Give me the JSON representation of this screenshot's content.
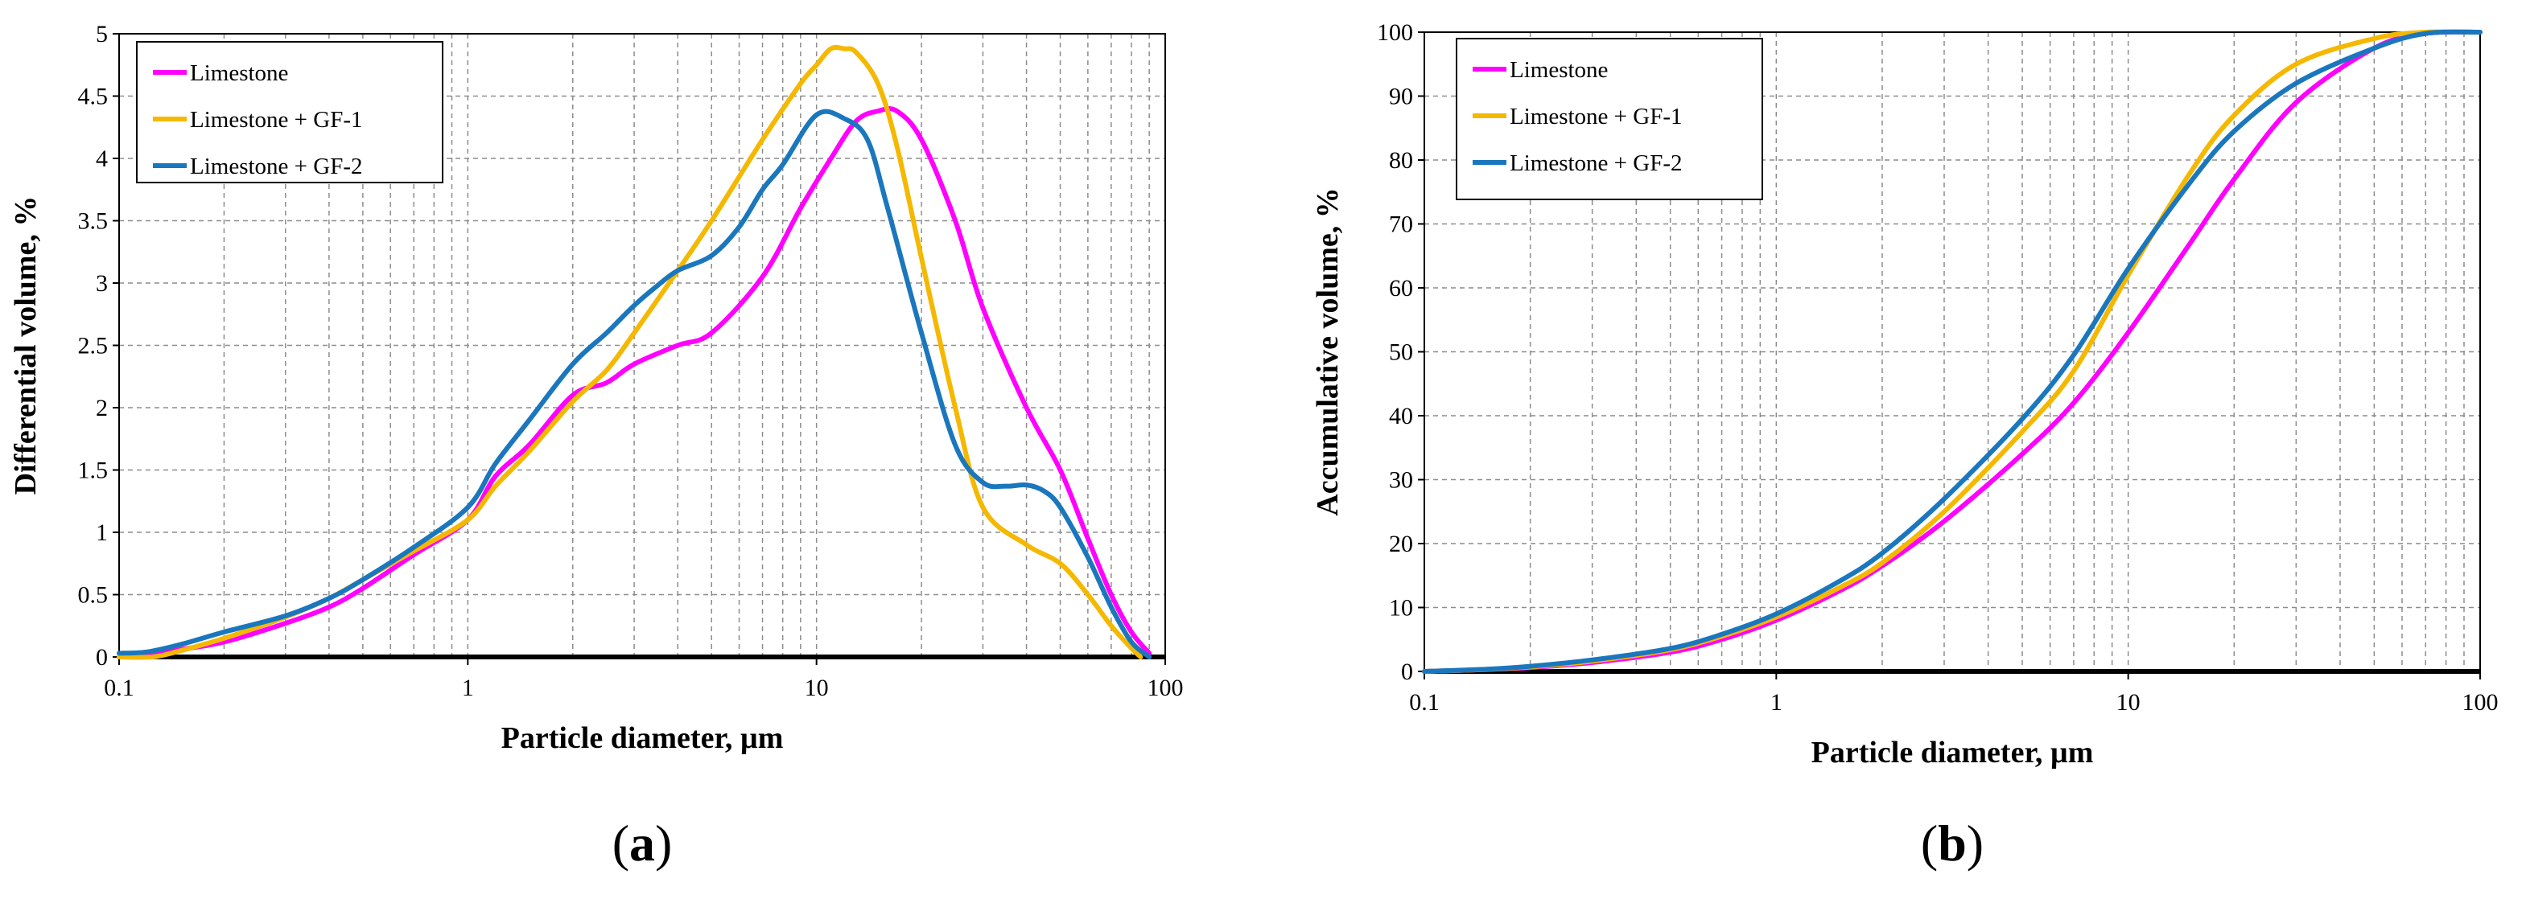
{
  "colors": {
    "limestone": "#ff00ff",
    "gf1": "#f5b800",
    "gf2": "#1a77bd",
    "grid": "#8c8c8c",
    "axis": "#000000"
  },
  "chart_data": [
    {
      "id": "a",
      "type": "line",
      "xscale": "log",
      "xlim": [
        0.1,
        100
      ],
      "ylim": [
        0,
        5
      ],
      "xticks": [
        0.1,
        1,
        10,
        100
      ],
      "xtick_labels": [
        "0.1",
        "1",
        "10",
        "100"
      ],
      "yticks": [
        0,
        0.5,
        1,
        1.5,
        2,
        2.5,
        3,
        3.5,
        4,
        4.5,
        5
      ],
      "ytick_labels": [
        "0",
        "0.5",
        "1",
        "1.5",
        "2",
        "2.5",
        "3",
        "3.5",
        "4",
        "4.5",
        "5"
      ],
      "xlabel": "Particle diameter, µm",
      "ylabel": "Differential volume, %",
      "panel_label": "a",
      "grid": true,
      "legend_position": "top-left",
      "series": [
        {
          "name": "Limestone",
          "color_key": "limestone",
          "x": [
            0.1,
            0.12,
            0.15,
            0.2,
            0.3,
            0.4,
            0.5,
            0.7,
            1.0,
            1.2,
            1.5,
            2.0,
            2.5,
            3.0,
            4.0,
            5.0,
            7.0,
            9.0,
            11.0,
            13.0,
            15.0,
            17.0,
            20.0,
            25.0,
            30.0,
            40.0,
            50.0,
            60.0,
            70.0,
            80.0,
            90.0
          ],
          "values": [
            0.0,
            0.02,
            0.06,
            0.12,
            0.27,
            0.4,
            0.55,
            0.82,
            1.1,
            1.45,
            1.7,
            2.1,
            2.2,
            2.35,
            2.5,
            2.6,
            3.05,
            3.6,
            4.0,
            4.3,
            4.38,
            4.38,
            4.15,
            3.5,
            2.8,
            2.0,
            1.5,
            0.95,
            0.5,
            0.2,
            0.03
          ]
        },
        {
          "name": "Limestone + GF-1",
          "color_key": "gf1",
          "x": [
            0.1,
            0.125,
            0.15,
            0.2,
            0.3,
            0.4,
            0.5,
            0.7,
            1.0,
            1.2,
            1.5,
            2.0,
            2.5,
            3.0,
            4.0,
            5.0,
            7.0,
            9.0,
            10.0,
            11.0,
            12.0,
            13.0,
            15.0,
            17.0,
            20.0,
            25.0,
            30.0,
            40.0,
            50.0,
            60.0,
            70.0,
            80.0,
            85.0
          ],
          "values": [
            0.0,
            0.0,
            0.05,
            0.15,
            0.32,
            0.47,
            0.62,
            0.85,
            1.1,
            1.37,
            1.65,
            2.05,
            2.3,
            2.6,
            3.1,
            3.5,
            4.15,
            4.6,
            4.75,
            4.88,
            4.88,
            4.85,
            4.6,
            4.1,
            3.2,
            2.0,
            1.2,
            0.9,
            0.75,
            0.5,
            0.25,
            0.07,
            0.0
          ]
        },
        {
          "name": "Limestone + GF-2",
          "color_key": "gf2",
          "x": [
            0.1,
            0.12,
            0.15,
            0.2,
            0.3,
            0.4,
            0.5,
            0.7,
            1.0,
            1.2,
            1.5,
            2.0,
            2.5,
            3.0,
            3.5,
            4.0,
            5.0,
            6.0,
            7.0,
            8.0,
            10.0,
            12.0,
            14.0,
            16.0,
            20.0,
            25.0,
            30.0,
            35.0,
            40.0,
            45.0,
            50.0,
            60.0,
            70.0,
            80.0,
            90.0
          ],
          "values": [
            0.03,
            0.04,
            0.1,
            0.2,
            0.33,
            0.47,
            0.62,
            0.88,
            1.2,
            1.55,
            1.9,
            2.35,
            2.6,
            2.82,
            2.98,
            3.1,
            3.22,
            3.45,
            3.75,
            3.95,
            4.35,
            4.32,
            4.15,
            3.6,
            2.6,
            1.7,
            1.4,
            1.37,
            1.38,
            1.33,
            1.2,
            0.8,
            0.4,
            0.12,
            0.0
          ]
        }
      ]
    },
    {
      "id": "b",
      "type": "line",
      "xscale": "log",
      "xlim": [
        0.1,
        100
      ],
      "ylim": [
        0,
        100
      ],
      "xticks": [
        0.1,
        1,
        10,
        100
      ],
      "xtick_labels": [
        "0.1",
        "1",
        "10",
        "100"
      ],
      "yticks": [
        0,
        10,
        20,
        30,
        40,
        50,
        60,
        70,
        80,
        90,
        100
      ],
      "ytick_labels": [
        "0",
        "10",
        "20",
        "30",
        "40",
        "50",
        "60",
        "70",
        "80",
        "90",
        "100"
      ],
      "xlabel": "Particle diameter, µm",
      "ylabel": "Accumulative volume, %",
      "panel_label": "b",
      "grid": true,
      "legend_position": "top-left",
      "series": [
        {
          "name": "Limestone",
          "color_key": "limestone",
          "x": [
            0.1,
            0.15,
            0.2,
            0.3,
            0.5,
            0.7,
            1.0,
            1.5,
            2.0,
            3.0,
            5.0,
            7.0,
            10.0,
            15.0,
            20.0,
            30.0,
            50.0,
            70.0,
            100.0
          ],
          "values": [
            0.0,
            0.3,
            0.6,
            1.4,
            3.0,
            5.0,
            8.0,
            12.5,
            16.5,
            23.5,
            34.0,
            42.0,
            53.0,
            67.0,
            77.0,
            89.0,
            97.5,
            99.8,
            100.0
          ]
        },
        {
          "name": "Limestone + GF-1",
          "color_key": "gf1",
          "x": [
            0.1,
            0.15,
            0.2,
            0.3,
            0.5,
            0.7,
            1.0,
            1.5,
            2.0,
            3.0,
            5.0,
            7.0,
            10.0,
            15.0,
            20.0,
            30.0,
            50.0,
            70.0,
            100.0
          ],
          "values": [
            0.0,
            0.3,
            0.7,
            1.6,
            3.4,
            5.5,
            8.5,
            13.0,
            17.0,
            25.0,
            37.5,
            47.0,
            62.0,
            78.0,
            87.0,
            95.0,
            99.0,
            100.0,
            100.0
          ]
        },
        {
          "name": "Limestone + GF-2",
          "color_key": "gf2",
          "x": [
            0.1,
            0.15,
            0.2,
            0.3,
            0.5,
            0.7,
            1.0,
            1.5,
            2.0,
            3.0,
            5.0,
            7.0,
            10.0,
            15.0,
            20.0,
            30.0,
            50.0,
            70.0,
            100.0
          ],
          "values": [
            0.0,
            0.35,
            0.8,
            1.8,
            3.6,
            5.8,
            9.0,
            14.0,
            18.5,
            27.0,
            39.5,
            49.5,
            63.0,
            76.5,
            84.5,
            92.0,
            97.5,
            99.8,
            100.0
          ]
        }
      ]
    }
  ]
}
